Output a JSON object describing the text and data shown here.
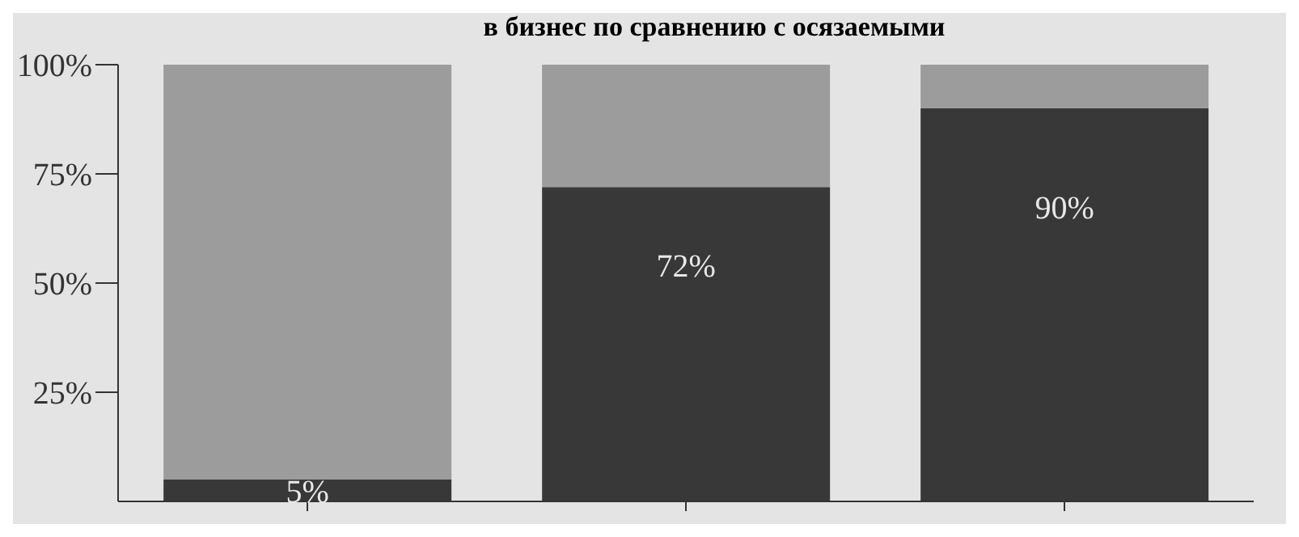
{
  "chart_data": {
    "type": "bar",
    "title": "в бизнес по сравнению с осязаемыми",
    "categories": [
      null,
      null,
      null
    ],
    "stacked": true,
    "series": [
      {
        "color": "#383838",
        "values": [
          5,
          72,
          90
        ],
        "value_labels": [
          "5%",
          "72%",
          "90%"
        ]
      },
      {
        "color": "#9c9c9c",
        "values": [
          95,
          28,
          10
        ]
      }
    ],
    "ylim": [
      0,
      100
    ],
    "yticks": [
      {
        "value": 25,
        "label": "25%"
      },
      {
        "value": 50,
        "label": "50%"
      },
      {
        "value": 75,
        "label": "75%"
      },
      {
        "value": 100,
        "label": "100%"
      }
    ]
  }
}
